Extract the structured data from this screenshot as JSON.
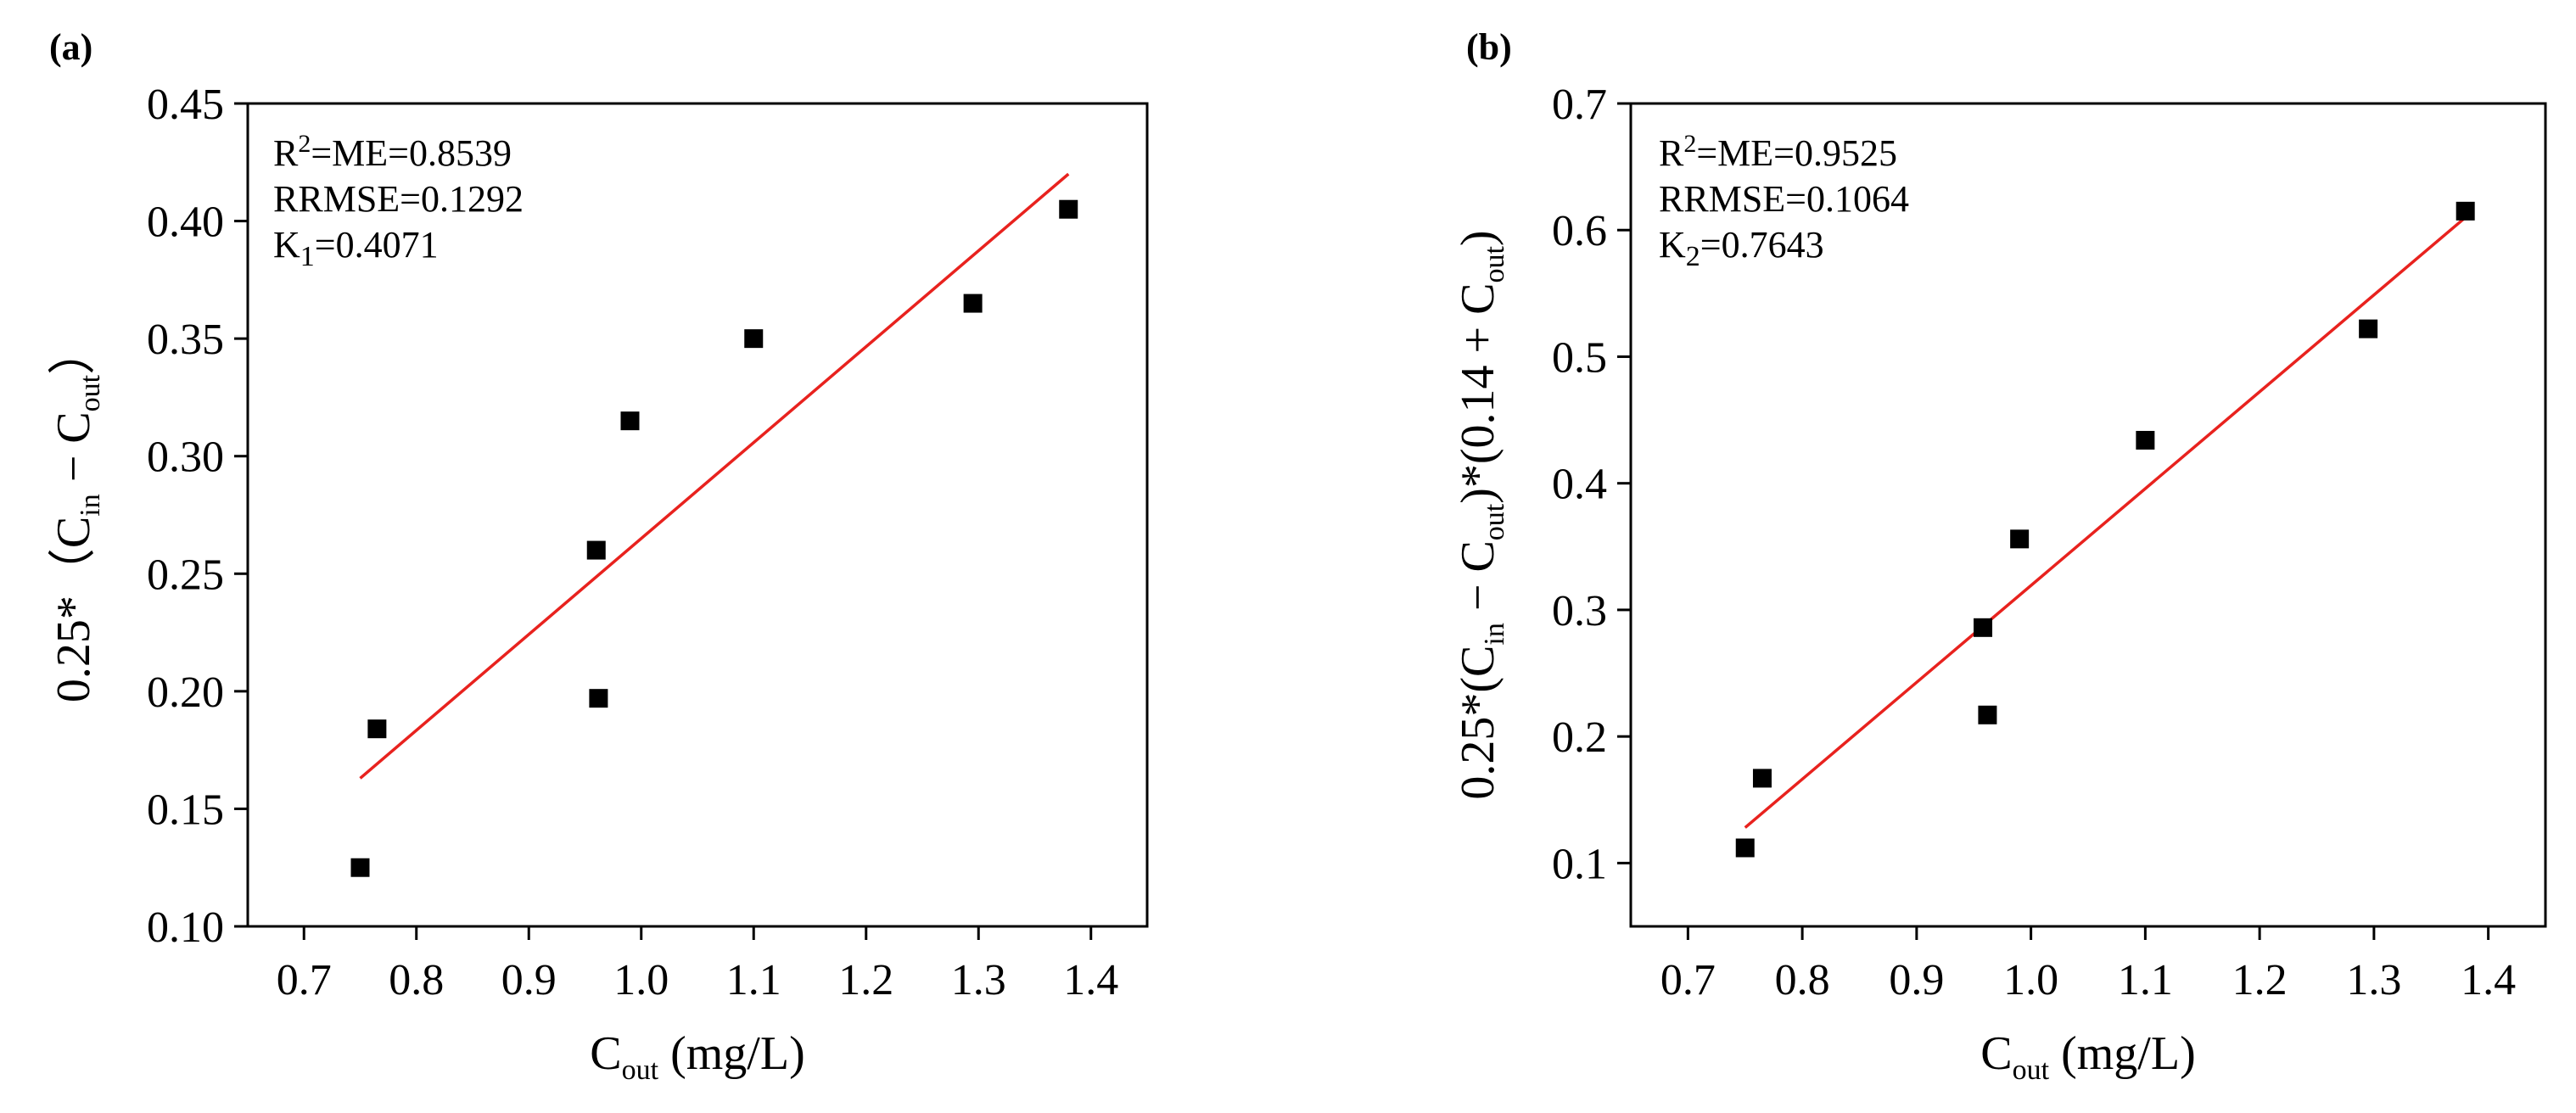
{
  "chart_data": [
    {
      "type": "scatter",
      "panel_label": "(a)",
      "xlabel": {
        "main": "C",
        "sub": "out",
        "rest": " (mg/L)"
      },
      "ylabel": {
        "p1": "0.25*（C",
        "s1": "in",
        "p2": " − C",
        "s2": "out",
        "p3": "）"
      },
      "xlim": [
        0.65,
        1.45
      ],
      "ylim": [
        0.1,
        0.45
      ],
      "xticks": [
        "0.7",
        "0.8",
        "0.9",
        "1.0",
        "1.1",
        "1.2",
        "1.3",
        "1.4"
      ],
      "yticks": [
        "0.10",
        "0.15",
        "0.20",
        "0.25",
        "0.30",
        "0.35",
        "0.40",
        "0.45"
      ],
      "stats": [
        {
          "pre": "R",
          "sup": "2",
          "post": "=ME=0.8539"
        },
        {
          "pre": "RRMSE=0.1292"
        },
        {
          "pre": "K",
          "sub": "1",
          "post": "=0.4071"
        }
      ],
      "points": [
        {
          "x": 0.75,
          "y": 0.125
        },
        {
          "x": 0.765,
          "y": 0.184
        },
        {
          "x": 0.96,
          "y": 0.26
        },
        {
          "x": 0.962,
          "y": 0.197
        },
        {
          "x": 0.99,
          "y": 0.315
        },
        {
          "x": 1.1,
          "y": 0.35
        },
        {
          "x": 1.295,
          "y": 0.365
        },
        {
          "x": 1.38,
          "y": 0.405
        }
      ],
      "fit": {
        "x": [
          0.75,
          1.38
        ],
        "y": [
          0.163,
          0.42
        ]
      },
      "colors": {
        "points": "#000000",
        "fit": "#e8221e"
      }
    },
    {
      "type": "scatter",
      "panel_label": "(b)",
      "xlabel": {
        "main": "C",
        "sub": "out",
        "rest": " (mg/L)"
      },
      "ylabel": {
        "p1": "0.25*(C",
        "s1": "in",
        "p2": " − C",
        "s2": "out",
        "p3": ")*(0.14 + C",
        "s3": "out",
        "p4": ")"
      },
      "xlim": [
        0.65,
        1.45
      ],
      "ylim": [
        0.05,
        0.7
      ],
      "xticks": [
        "0.7",
        "0.8",
        "0.9",
        "1.0",
        "1.1",
        "1.2",
        "1.3",
        "1.4"
      ],
      "yticks": [
        "0.1",
        "0.2",
        "0.3",
        "0.4",
        "0.5",
        "0.6",
        "0.7"
      ],
      "stats": [
        {
          "pre": "R",
          "sup": "2",
          "post": "=ME=0.9525"
        },
        {
          "pre": "RRMSE=0.1064"
        },
        {
          "pre": "K",
          "sub": "2",
          "post": "=0.7643"
        }
      ],
      "points": [
        {
          "x": 0.75,
          "y": 0.112
        },
        {
          "x": 0.765,
          "y": 0.167
        },
        {
          "x": 0.958,
          "y": 0.286
        },
        {
          "x": 0.962,
          "y": 0.217
        },
        {
          "x": 0.99,
          "y": 0.356
        },
        {
          "x": 1.1,
          "y": 0.434
        },
        {
          "x": 1.295,
          "y": 0.522
        },
        {
          "x": 1.38,
          "y": 0.615
        }
      ],
      "fit": {
        "x": [
          0.75,
          1.38
        ],
        "y": [
          0.128,
          0.61
        ]
      },
      "colors": {
        "points": "#000000",
        "fit": "#e8221e"
      }
    }
  ]
}
